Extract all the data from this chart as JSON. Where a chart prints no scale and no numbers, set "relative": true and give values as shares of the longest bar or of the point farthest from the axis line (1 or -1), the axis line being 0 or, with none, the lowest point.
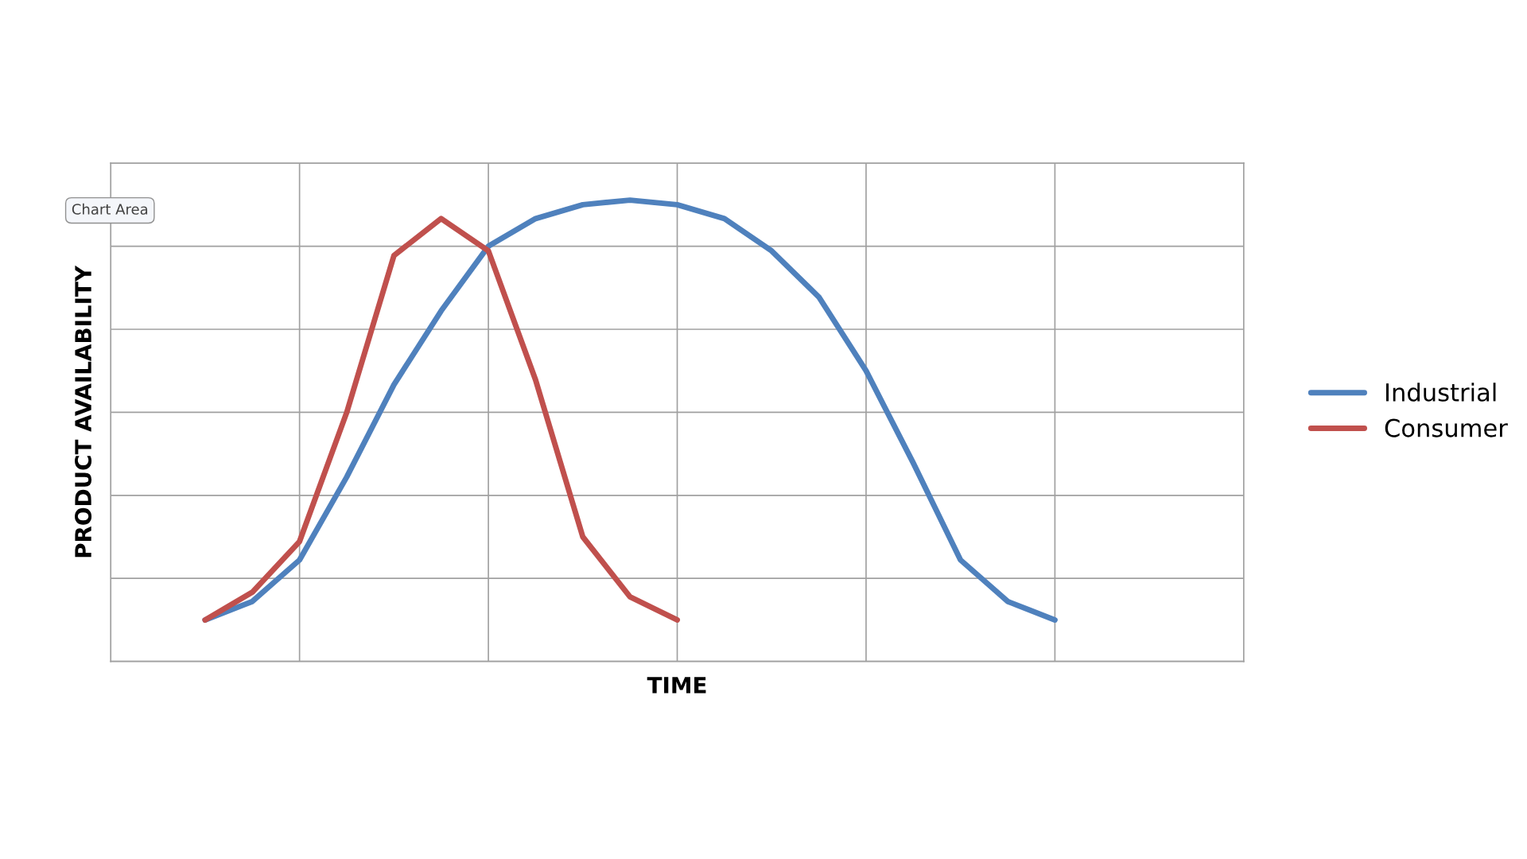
{
  "chart_data": {
    "type": "line",
    "relative": true,
    "xlabel": "TIME",
    "ylabel": "PRODUCT AVAILABILITY",
    "grid": true,
    "legend": "right",
    "line_style": "solid",
    "annotations": [
      "Chart Area"
    ],
    "categories": [
      null,
      null,
      null,
      null,
      null,
      null,
      null,
      null,
      null,
      null,
      null,
      null,
      null,
      null,
      null,
      null,
      null,
      null,
      null
    ],
    "series": [
      {
        "name": "Industrial",
        "color": "#4f81bd",
        "values": [
          0.09,
          0.13,
          0.22,
          0.4,
          0.6,
          0.76,
          0.9,
          0.96,
          0.99,
          1,
          0.99,
          0.96,
          0.89,
          0.79,
          0.63,
          0.43,
          0.22,
          0.13,
          0.09
        ]
      },
      {
        "name": "Consumer",
        "color": "#c0504d",
        "values": [
          0.09,
          0.15,
          0.26,
          0.54,
          0.88,
          0.96,
          0.89,
          0.61,
          0.27,
          0.14,
          0.09,
          null,
          null,
          null,
          null,
          null,
          null,
          null,
          null
        ]
      }
    ]
  }
}
